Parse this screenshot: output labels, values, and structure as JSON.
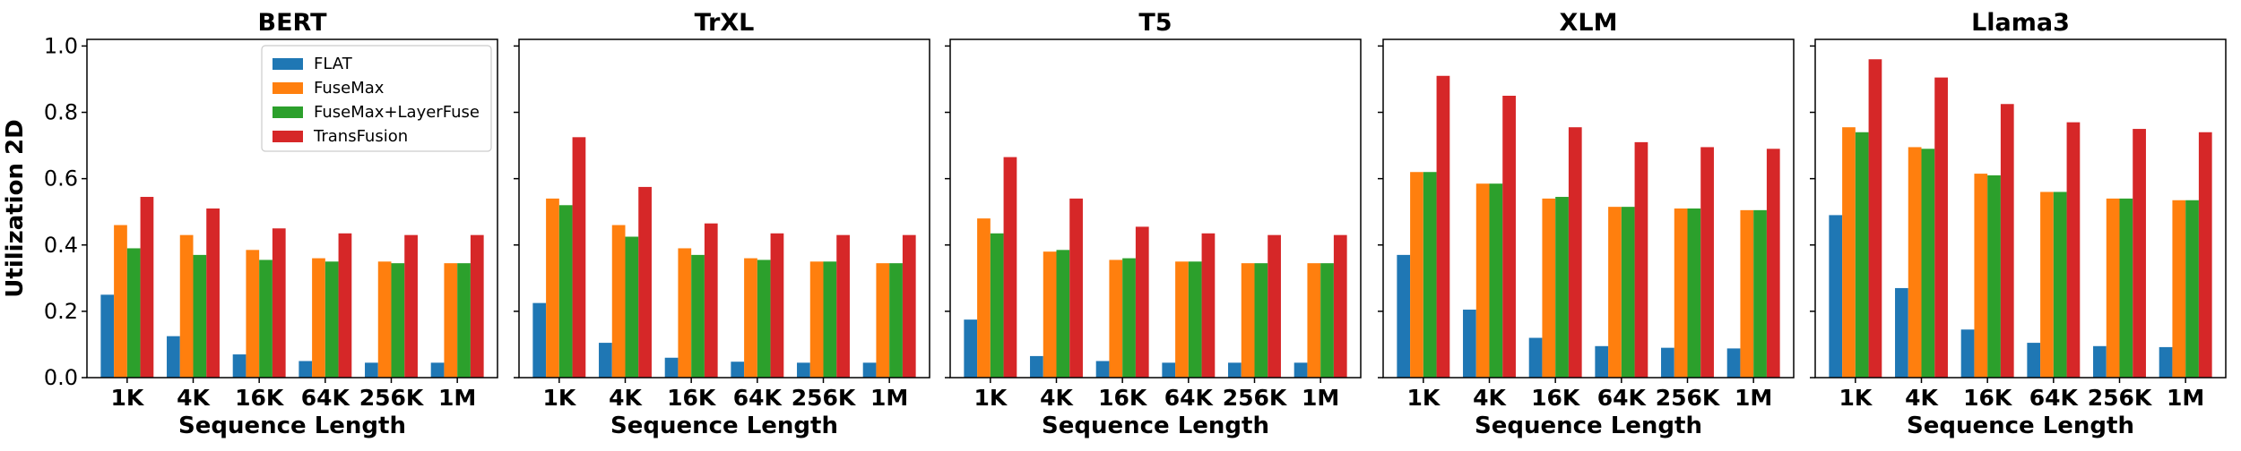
{
  "chart_data": {
    "type": "bar",
    "ylabel": "Utilization 2D",
    "xlabel": "Sequence Length",
    "ylim": [
      0,
      1.0
    ],
    "yticks": [
      "0.0",
      "0.2",
      "0.4",
      "0.6",
      "0.8",
      "1.0"
    ],
    "categories": [
      "1K",
      "4K",
      "16K",
      "64K",
      "256K",
      "1M"
    ],
    "legend": {
      "placement": "upper-right-of-first-panel",
      "entries": [
        "FLAT",
        "FuseMax",
        "FuseMax+LayerFuse",
        "TransFusion"
      ]
    },
    "colors": {
      "FLAT": "#1f77b4",
      "FuseMax": "#ff7f0e",
      "FuseMax+LayerFuse": "#2ca02c",
      "TransFusion": "#d62728"
    },
    "panels": [
      {
        "title": "BERT",
        "series": [
          {
            "name": "FLAT",
            "values": [
              0.25,
              0.125,
              0.07,
              0.05,
              0.045,
              0.045
            ]
          },
          {
            "name": "FuseMax",
            "values": [
              0.46,
              0.43,
              0.385,
              0.36,
              0.35,
              0.345
            ]
          },
          {
            "name": "FuseMax+LayerFuse",
            "values": [
              0.39,
              0.37,
              0.355,
              0.35,
              0.345,
              0.345
            ]
          },
          {
            "name": "TransFusion",
            "values": [
              0.545,
              0.51,
              0.45,
              0.435,
              0.43,
              0.43
            ]
          }
        ]
      },
      {
        "title": "TrXL",
        "series": [
          {
            "name": "FLAT",
            "values": [
              0.225,
              0.105,
              0.06,
              0.048,
              0.045,
              0.045
            ]
          },
          {
            "name": "FuseMax",
            "values": [
              0.54,
              0.46,
              0.39,
              0.36,
              0.35,
              0.345
            ]
          },
          {
            "name": "FuseMax+LayerFuse",
            "values": [
              0.52,
              0.425,
              0.37,
              0.355,
              0.35,
              0.345
            ]
          },
          {
            "name": "TransFusion",
            "values": [
              0.725,
              0.575,
              0.465,
              0.435,
              0.43,
              0.43
            ]
          }
        ]
      },
      {
        "title": "T5",
        "series": [
          {
            "name": "FLAT",
            "values": [
              0.175,
              0.065,
              0.05,
              0.045,
              0.045,
              0.045
            ]
          },
          {
            "name": "FuseMax",
            "values": [
              0.48,
              0.38,
              0.355,
              0.35,
              0.345,
              0.345
            ]
          },
          {
            "name": "FuseMax+LayerFuse",
            "values": [
              0.435,
              0.385,
              0.36,
              0.35,
              0.345,
              0.345
            ]
          },
          {
            "name": "TransFusion",
            "values": [
              0.665,
              0.54,
              0.455,
              0.435,
              0.43,
              0.43
            ]
          }
        ]
      },
      {
        "title": "XLM",
        "series": [
          {
            "name": "FLAT",
            "values": [
              0.37,
              0.205,
              0.12,
              0.095,
              0.09,
              0.088
            ]
          },
          {
            "name": "FuseMax",
            "values": [
              0.62,
              0.585,
              0.54,
              0.515,
              0.51,
              0.505
            ]
          },
          {
            "name": "FuseMax+LayerFuse",
            "values": [
              0.62,
              0.585,
              0.545,
              0.515,
              0.51,
              0.505
            ]
          },
          {
            "name": "TransFusion",
            "values": [
              0.91,
              0.85,
              0.755,
              0.71,
              0.695,
              0.69
            ]
          }
        ]
      },
      {
        "title": "Llama3",
        "series": [
          {
            "name": "FLAT",
            "values": [
              0.49,
              0.27,
              0.145,
              0.105,
              0.095,
              0.092
            ]
          },
          {
            "name": "FuseMax",
            "values": [
              0.755,
              0.695,
              0.615,
              0.56,
              0.54,
              0.535
            ]
          },
          {
            "name": "FuseMax+LayerFuse",
            "values": [
              0.74,
              0.69,
              0.61,
              0.56,
              0.54,
              0.535
            ]
          },
          {
            "name": "TransFusion",
            "values": [
              0.96,
              0.905,
              0.825,
              0.77,
              0.75,
              0.74
            ]
          }
        ]
      }
    ]
  }
}
